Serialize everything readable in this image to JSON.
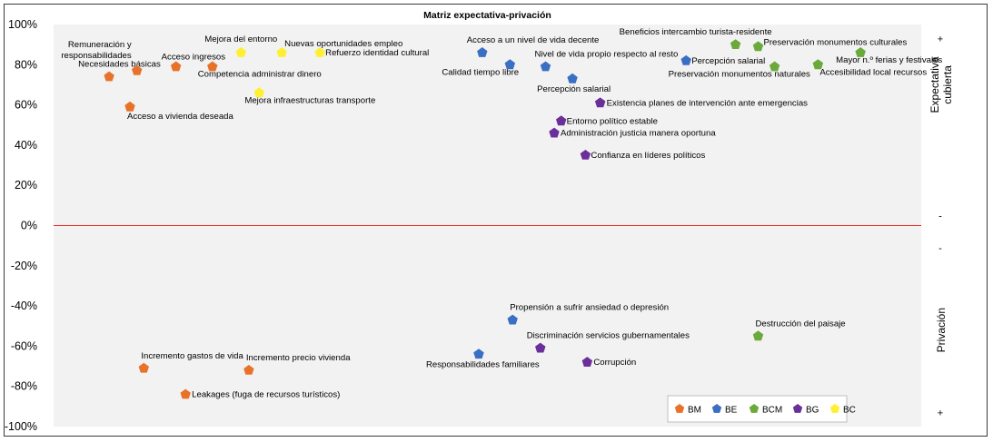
{
  "chart_data": {
    "type": "scatter",
    "title": "Matriz expectativa-privación",
    "ylim": [
      -100,
      100
    ],
    "y_ticks": [
      "100%",
      "80%",
      "60%",
      "40%",
      "20%",
      "0%",
      "-20%",
      "-40%",
      "-60%",
      "-80%",
      "-100%"
    ],
    "y_tick_values": [
      100,
      80,
      60,
      40,
      20,
      0,
      -20,
      -40,
      -60,
      -80,
      -100
    ],
    "xlim": [
      0,
      100
    ],
    "grid": false,
    "reference_line": {
      "y": 0,
      "color": "#e8302c"
    },
    "background": "#f2f2f2",
    "side_labels": {
      "top": "Expectativa\ncubierta",
      "bottom": "Privación",
      "top_plus": "+",
      "top_minus": "-",
      "bottom_minus": "-",
      "bottom_plus": "+"
    },
    "legend_position": "bottom-right",
    "series": [
      {
        "name": "BM",
        "color": "#e8722a",
        "points": [
          {
            "x": 6.4,
            "y": 74,
            "label": "Necesidades básicas"
          },
          {
            "x": 9.6,
            "y": 77,
            "label": "Remuneración y\nresponsabilidades"
          },
          {
            "x": 14.1,
            "y": 79,
            "label": "Acceso ingresos"
          },
          {
            "x": 18.3,
            "y": 79,
            "label": "Competencia administrar dinero"
          },
          {
            "x": 8.8,
            "y": 59,
            "label": "Acceso a vivienda deseada"
          },
          {
            "x": 10.4,
            "y": -71,
            "label": "Incremento gastos de vida"
          },
          {
            "x": 22.5,
            "y": -72,
            "label": "Incremento precio vivienda"
          },
          {
            "x": 15.2,
            "y": -84,
            "label": "Leakages (fuga de recursos turísticos)"
          }
        ]
      },
      {
        "name": "BE",
        "color": "#3a6fc4",
        "points": [
          {
            "x": 49.4,
            "y": 86,
            "label": "Acceso a un nivel de vida decente"
          },
          {
            "x": 52.6,
            "y": 80,
            "label": "Calidad tiempo libre"
          },
          {
            "x": 56.7,
            "y": 79,
            "label": "Nivel de vida propio respecto al resto"
          },
          {
            "x": 59.8,
            "y": 73,
            "label": "Percepción salarial"
          },
          {
            "x": 72.9,
            "y": 82,
            "label": "Percepción salarial"
          },
          {
            "x": 52.9,
            "y": -47,
            "label": "Propensión a sufrir ansiedad o depresión"
          },
          {
            "x": 49.0,
            "y": -64,
            "label": "Responsabilidades familiares"
          }
        ]
      },
      {
        "name": "BCM",
        "color": "#6aaa3a",
        "points": [
          {
            "x": 78.6,
            "y": 90,
            "label": "Beneficios intercambio turista-residente"
          },
          {
            "x": 81.2,
            "y": 89,
            "label": "Preservación monumentos culturales"
          },
          {
            "x": 83.1,
            "y": 79,
            "label": "Preservación monumentos naturales"
          },
          {
            "x": 88.1,
            "y": 80,
            "label": "Accesibilidad local recursos"
          },
          {
            "x": 93.0,
            "y": 86,
            "label": "Mayor n.º ferias y festivales"
          },
          {
            "x": 81.2,
            "y": -55,
            "label": "Destrucción del paisaje"
          }
        ]
      },
      {
        "name": "BG",
        "color": "#6a2f9a",
        "points": [
          {
            "x": 63.0,
            "y": 61,
            "label": "Existencia planes de intervención ante emergencias"
          },
          {
            "x": 58.5,
            "y": 52,
            "label": "Entorno político estable"
          },
          {
            "x": 57.7,
            "y": 46,
            "label": "Administración justicia manera oportuna"
          },
          {
            "x": 61.3,
            "y": 35,
            "label": "Confianza en líderes políticos"
          },
          {
            "x": 56.1,
            "y": -61,
            "label": "Discriminación servicios gubernamentales"
          },
          {
            "x": 61.5,
            "y": -68,
            "label": "Corrupción"
          }
        ]
      },
      {
        "name": "BC",
        "color": "#ffef33",
        "points": [
          {
            "x": 21.6,
            "y": 86,
            "label": "Mejora del entorno"
          },
          {
            "x": 26.3,
            "y": 86,
            "label": "Nuevas oportunidades empleo"
          },
          {
            "x": 30.7,
            "y": 86,
            "label": "Refuerzo identidad cultural"
          },
          {
            "x": 23.7,
            "y": 66,
            "label": "Mejora infraestructuras transporte"
          }
        ]
      }
    ]
  }
}
